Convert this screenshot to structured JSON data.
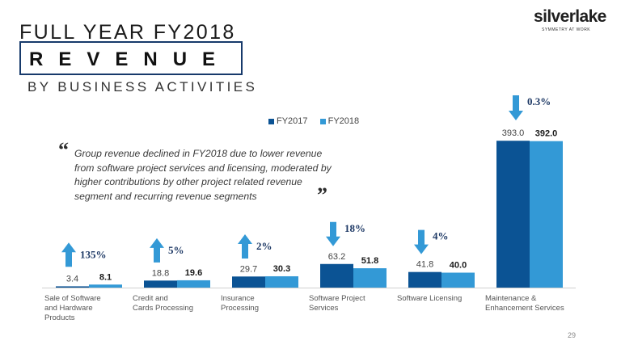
{
  "header": {
    "title_line1": "FULL YEAR FY2018",
    "title_line2": "REVENUE",
    "title_line3": "BY BUSINESS ACTIVITIES"
  },
  "logo": {
    "name": "silverlake",
    "tagline": "SYMMETRY AT WORK"
  },
  "quote": {
    "open_mark": "“",
    "text": "Group revenue declined in FY2018 due to lower revenue from software project services and licensing, moderated by higher contributions by other project related revenue segment and recurring revenue segments",
    "close_mark": "”"
  },
  "page_number": "29",
  "colors": {
    "fy2017": "#0b5394",
    "fy2018": "#3399d6",
    "arrow": "#3399d6",
    "pct_text": "#1f3a66"
  },
  "chart_data": {
    "type": "bar",
    "title": "",
    "categories": [
      "Sale of Software and Hardware Products",
      "Credit and Cards Processing",
      "Insurance Processing",
      "Software Project Services",
      "Software Licensing",
      "Maintenance & Enhancement Services"
    ],
    "category_lines": [
      [
        "Sale of Software",
        "and Hardware",
        "Products"
      ],
      [
        "Credit and",
        "Cards Processing"
      ],
      [
        "Insurance",
        "Processing"
      ],
      [
        "Software Project",
        "Services"
      ],
      [
        "Software Licensing"
      ],
      [
        "Maintenance &",
        "Enhancement Services"
      ]
    ],
    "series": [
      {
        "name": "FY2017",
        "values": [
          3.4,
          18.8,
          29.7,
          63.2,
          41.8,
          393.0
        ],
        "labels": [
          "3.4",
          "18.8",
          "29.7",
          "63.2",
          "41.8",
          "393.0"
        ]
      },
      {
        "name": "FY2018",
        "values": [
          8.1,
          19.6,
          30.3,
          51.8,
          40.0,
          392.0
        ],
        "labels": [
          "8.1",
          "19.6",
          "30.3",
          "51.8",
          "40.0",
          "392.0"
        ]
      }
    ],
    "changes": [
      {
        "direction": "up",
        "label": "135%"
      },
      {
        "direction": "up",
        "label": "5%"
      },
      {
        "direction": "up",
        "label": "2%"
      },
      {
        "direction": "down",
        "label": "18%"
      },
      {
        "direction": "down",
        "label": "4%"
      },
      {
        "direction": "down",
        "label": "0.3%"
      }
    ],
    "legend_position": "top",
    "xlabel": "",
    "ylabel": "",
    "ylim": [
      0,
      400
    ],
    "grid": false
  }
}
